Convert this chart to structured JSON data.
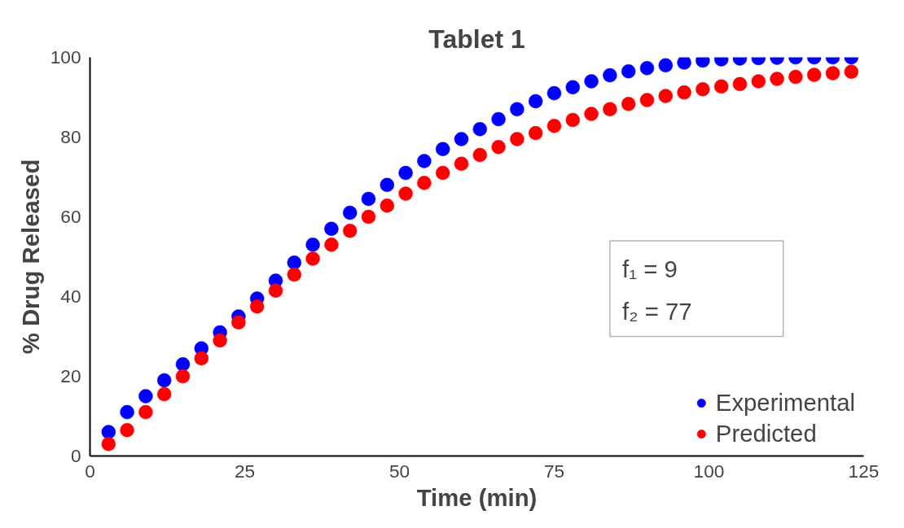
{
  "chart_data": {
    "type": "scatter",
    "title": "Tablet 1",
    "xlabel": "Time (min)",
    "ylabel": "% Drug Released",
    "x": [
      3,
      6,
      9,
      12,
      15,
      18,
      21,
      24,
      27,
      30,
      33,
      36,
      39,
      42,
      45,
      48,
      51,
      54,
      57,
      60,
      63,
      66,
      69,
      72,
      75,
      78,
      81,
      84,
      87,
      90,
      93,
      96,
      99,
      102,
      105,
      108,
      111,
      114,
      117,
      120,
      123
    ],
    "series": [
      {
        "name": "Experimental",
        "color": "#0000ff",
        "values": [
          6,
          11,
          15,
          19,
          23,
          27,
          31,
          35,
          39.5,
          44,
          48.5,
          53,
          57,
          61,
          64.5,
          68,
          71,
          74,
          77,
          79.5,
          82,
          84.5,
          87,
          89,
          91,
          92.5,
          94,
          95.5,
          96.5,
          97.3,
          98,
          98.7,
          99.2,
          99.5,
          99.7,
          99.8,
          99.9,
          100,
          100,
          100,
          100
        ]
      },
      {
        "name": "Predicted",
        "color": "#ff0000",
        "values": [
          3,
          6.5,
          11,
          15.5,
          20,
          24.5,
          29,
          33.5,
          37.5,
          41.5,
          45.5,
          49.5,
          53,
          56.5,
          60,
          62.8,
          65.8,
          68.5,
          71,
          73.3,
          75.5,
          77.5,
          79.5,
          81,
          82.8,
          84.3,
          85.8,
          87,
          88.3,
          89.3,
          90.3,
          91.2,
          92,
          92.7,
          93.3,
          94,
          94.6,
          95.1,
          95.6,
          96,
          96.4
        ]
      }
    ],
    "xlim": [
      0,
      125
    ],
    "xticks": [
      0,
      25,
      50,
      75,
      100,
      125
    ],
    "ylim": [
      0,
      100
    ],
    "yticks": [
      0,
      20,
      40,
      60,
      80,
      100
    ],
    "annotations": [
      "f₁ = 9",
      "f₂ = 77"
    ],
    "legend": "bottom right",
    "marker": "circle",
    "grid": false
  }
}
